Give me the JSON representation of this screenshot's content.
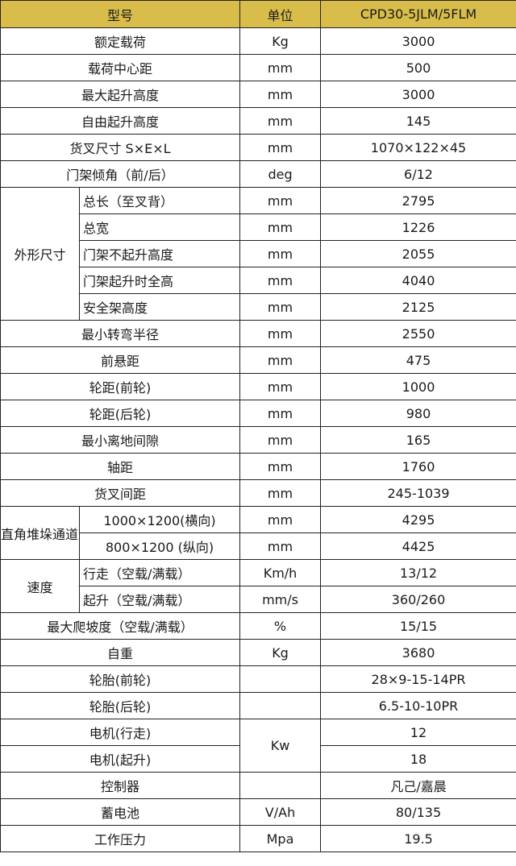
{
  "header": {
    "model": "型号",
    "unit": "单位",
    "value": "CPD30-5JLM/5FLM"
  },
  "header_color": "#d9bd4b",
  "rows": [
    {
      "label": "额定载荷",
      "unit": "Kg",
      "value": "3000"
    },
    {
      "label": "载荷中心距",
      "unit": "mm",
      "value": "500"
    },
    {
      "label": "最大起升高度",
      "unit": "mm",
      "value": "3000"
    },
    {
      "label": "自由起升高度",
      "unit": "mm",
      "value": "145"
    },
    {
      "label": "货叉尺寸  S×E×L",
      "unit": "mm",
      "value": "1070×122×45"
    },
    {
      "label": "门架倾角（前/后）",
      "unit": "deg",
      "value": "6/12"
    },
    {
      "group": "外形尺寸",
      "align": "left",
      "items": [
        {
          "label": "总长（至叉背）",
          "unit": "mm",
          "value": "2795"
        },
        {
          "label": "总宽",
          "unit": "mm",
          "value": "1226"
        },
        {
          "label": "门架不起升高度",
          "unit": "mm",
          "value": "2055"
        },
        {
          "label": "门架起升时全高",
          "unit": "mm",
          "value": "4040"
        },
        {
          "label": "安全架高度",
          "unit": "mm",
          "value": "2125"
        }
      ]
    },
    {
      "label": "最小转弯半径",
      "unit": "mm",
      "value": "2550"
    },
    {
      "label": "前悬距",
      "unit": "mm",
      "value": "475"
    },
    {
      "label": "轮距(前轮)",
      "unit": "mm",
      "value": "1000"
    },
    {
      "label": "轮距(后轮)",
      "unit": "mm",
      "value": "980"
    },
    {
      "label": "最小离地间隙",
      "unit": "mm",
      "value": "165"
    },
    {
      "label": "轴距",
      "unit": "mm",
      "value": "1760"
    },
    {
      "label": "货叉间距",
      "unit": "mm",
      "value": "245-1039"
    },
    {
      "group": "直角堆垛通道宽度",
      "align": "center",
      "items": [
        {
          "label": "1000×1200(横向)",
          "unit": "mm",
          "value": "4295"
        },
        {
          "label": "800×1200 (纵向)",
          "unit": "mm",
          "value": "4425"
        }
      ]
    },
    {
      "group": "速度",
      "align": "left",
      "items": [
        {
          "label": "行走（空载/满载）",
          "unit": "Km/h",
          "value": "13/12"
        },
        {
          "label": "起升（空载/满载）",
          "unit": "mm/s",
          "value": "360/260"
        }
      ]
    },
    {
      "label": "最大爬坡度（空载/满载）",
      "unit": "%",
      "value": "15/15"
    },
    {
      "label": "自重",
      "unit": "Kg",
      "value": "3680"
    },
    {
      "label": "轮胎(前轮)",
      "unit": "",
      "value": "28×9-15-14PR"
    },
    {
      "label": "轮胎(后轮)",
      "unit": "",
      "value": "6.5-10-10PR"
    },
    {
      "label": "电机(行走)",
      "unit": "Kw",
      "unit_rowspan": 2,
      "value": "12"
    },
    {
      "label": "电机(起升)",
      "unit_merged": true,
      "value": "18"
    },
    {
      "label": "控制器",
      "unit": "",
      "value": "凡己/嘉晨"
    },
    {
      "label": "蓄电池",
      "unit": "V/Ah",
      "value": "80/135"
    },
    {
      "label": "工作压力",
      "unit": "Mpa",
      "value": "19.5"
    }
  ]
}
